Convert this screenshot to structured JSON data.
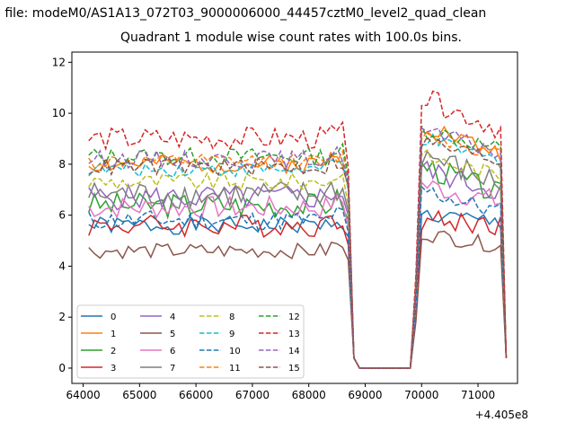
{
  "figure": {
    "suptitle": "n file: modeM0/AS1A13_072T03_9000006000_44457cztM0_level2_quad_clean",
    "offset_label": "+4.405e8"
  },
  "chart_data": {
    "type": "line",
    "title": "Quadrant 1 module wise count rates with 100.0s bins.",
    "xlabel": "",
    "ylabel": "",
    "x_offset": 440500000,
    "x_ticks": [
      64000,
      65000,
      66000,
      67000,
      68000,
      69000,
      70000,
      71000
    ],
    "y_ticks": [
      0,
      2,
      4,
      6,
      8,
      10,
      12
    ],
    "xlim": [
      63800,
      71700
    ],
    "ylim": [
      -0.6,
      12.4
    ],
    "grid": false,
    "legend_position": "lower-left",
    "legend_columns": 4,
    "series": [
      {
        "name": "0",
        "color": "#1f77b4",
        "dash": "solid",
        "level": 5.6,
        "peak": 6.0,
        "amp": 0.35,
        "seed": 1
      },
      {
        "name": "1",
        "color": "#ff7f0e",
        "dash": "solid",
        "level": 8.0,
        "peak": 9.6,
        "amp": 0.35,
        "seed": 2
      },
      {
        "name": "2",
        "color": "#2ca02c",
        "dash": "solid",
        "level": 6.4,
        "peak": 8.0,
        "amp": 0.5,
        "seed": 3
      },
      {
        "name": "3",
        "color": "#d62728",
        "dash": "solid",
        "level": 5.6,
        "peak": 5.8,
        "amp": 0.45,
        "seed": 4
      },
      {
        "name": "4",
        "color": "#9467bd",
        "dash": "solid",
        "level": 6.7,
        "peak": 7.8,
        "amp": 0.5,
        "seed": 5
      },
      {
        "name": "5",
        "color": "#8c564b",
        "dash": "solid",
        "level": 4.6,
        "peak": 5.3,
        "amp": 0.3,
        "seed": 6
      },
      {
        "name": "6",
        "color": "#e377c2",
        "dash": "solid",
        "level": 6.3,
        "peak": 7.2,
        "amp": 0.45,
        "seed": 7
      },
      {
        "name": "7",
        "color": "#7f7f7f",
        "dash": "solid",
        "level": 6.8,
        "peak": 8.4,
        "amp": 0.55,
        "seed": 8
      },
      {
        "name": "8",
        "color": "#bcbd22",
        "dash": "dashed",
        "level": 7.3,
        "peak": 8.3,
        "amp": 0.35,
        "seed": 9
      },
      {
        "name": "9",
        "color": "#17becf",
        "dash": "dashed",
        "level": 7.8,
        "peak": 9.0,
        "amp": 0.3,
        "seed": 10
      },
      {
        "name": "10",
        "color": "#1f77b4",
        "dash": "dashed",
        "level": 5.8,
        "peak": 7.0,
        "amp": 0.4,
        "seed": 11
      },
      {
        "name": "11",
        "color": "#ff7f0e",
        "dash": "dashed",
        "level": 8.1,
        "peak": 9.2,
        "amp": 0.3,
        "seed": 12
      },
      {
        "name": "12",
        "color": "#2ca02c",
        "dash": "dashed",
        "level": 8.3,
        "peak": 9.4,
        "amp": 0.35,
        "seed": 13
      },
      {
        "name": "13",
        "color": "#d62728",
        "dash": "dashed",
        "level": 9.0,
        "peak": 10.6,
        "amp": 0.45,
        "seed": 14
      },
      {
        "name": "14",
        "color": "#9467bd",
        "dash": "dashed",
        "level": 8.2,
        "peak": 9.3,
        "amp": 0.35,
        "seed": 15
      },
      {
        "name": "15",
        "color": "#8c564b",
        "dash": "dashed",
        "level": 7.9,
        "peak": 8.9,
        "amp": 0.35,
        "seed": 16
      }
    ]
  }
}
